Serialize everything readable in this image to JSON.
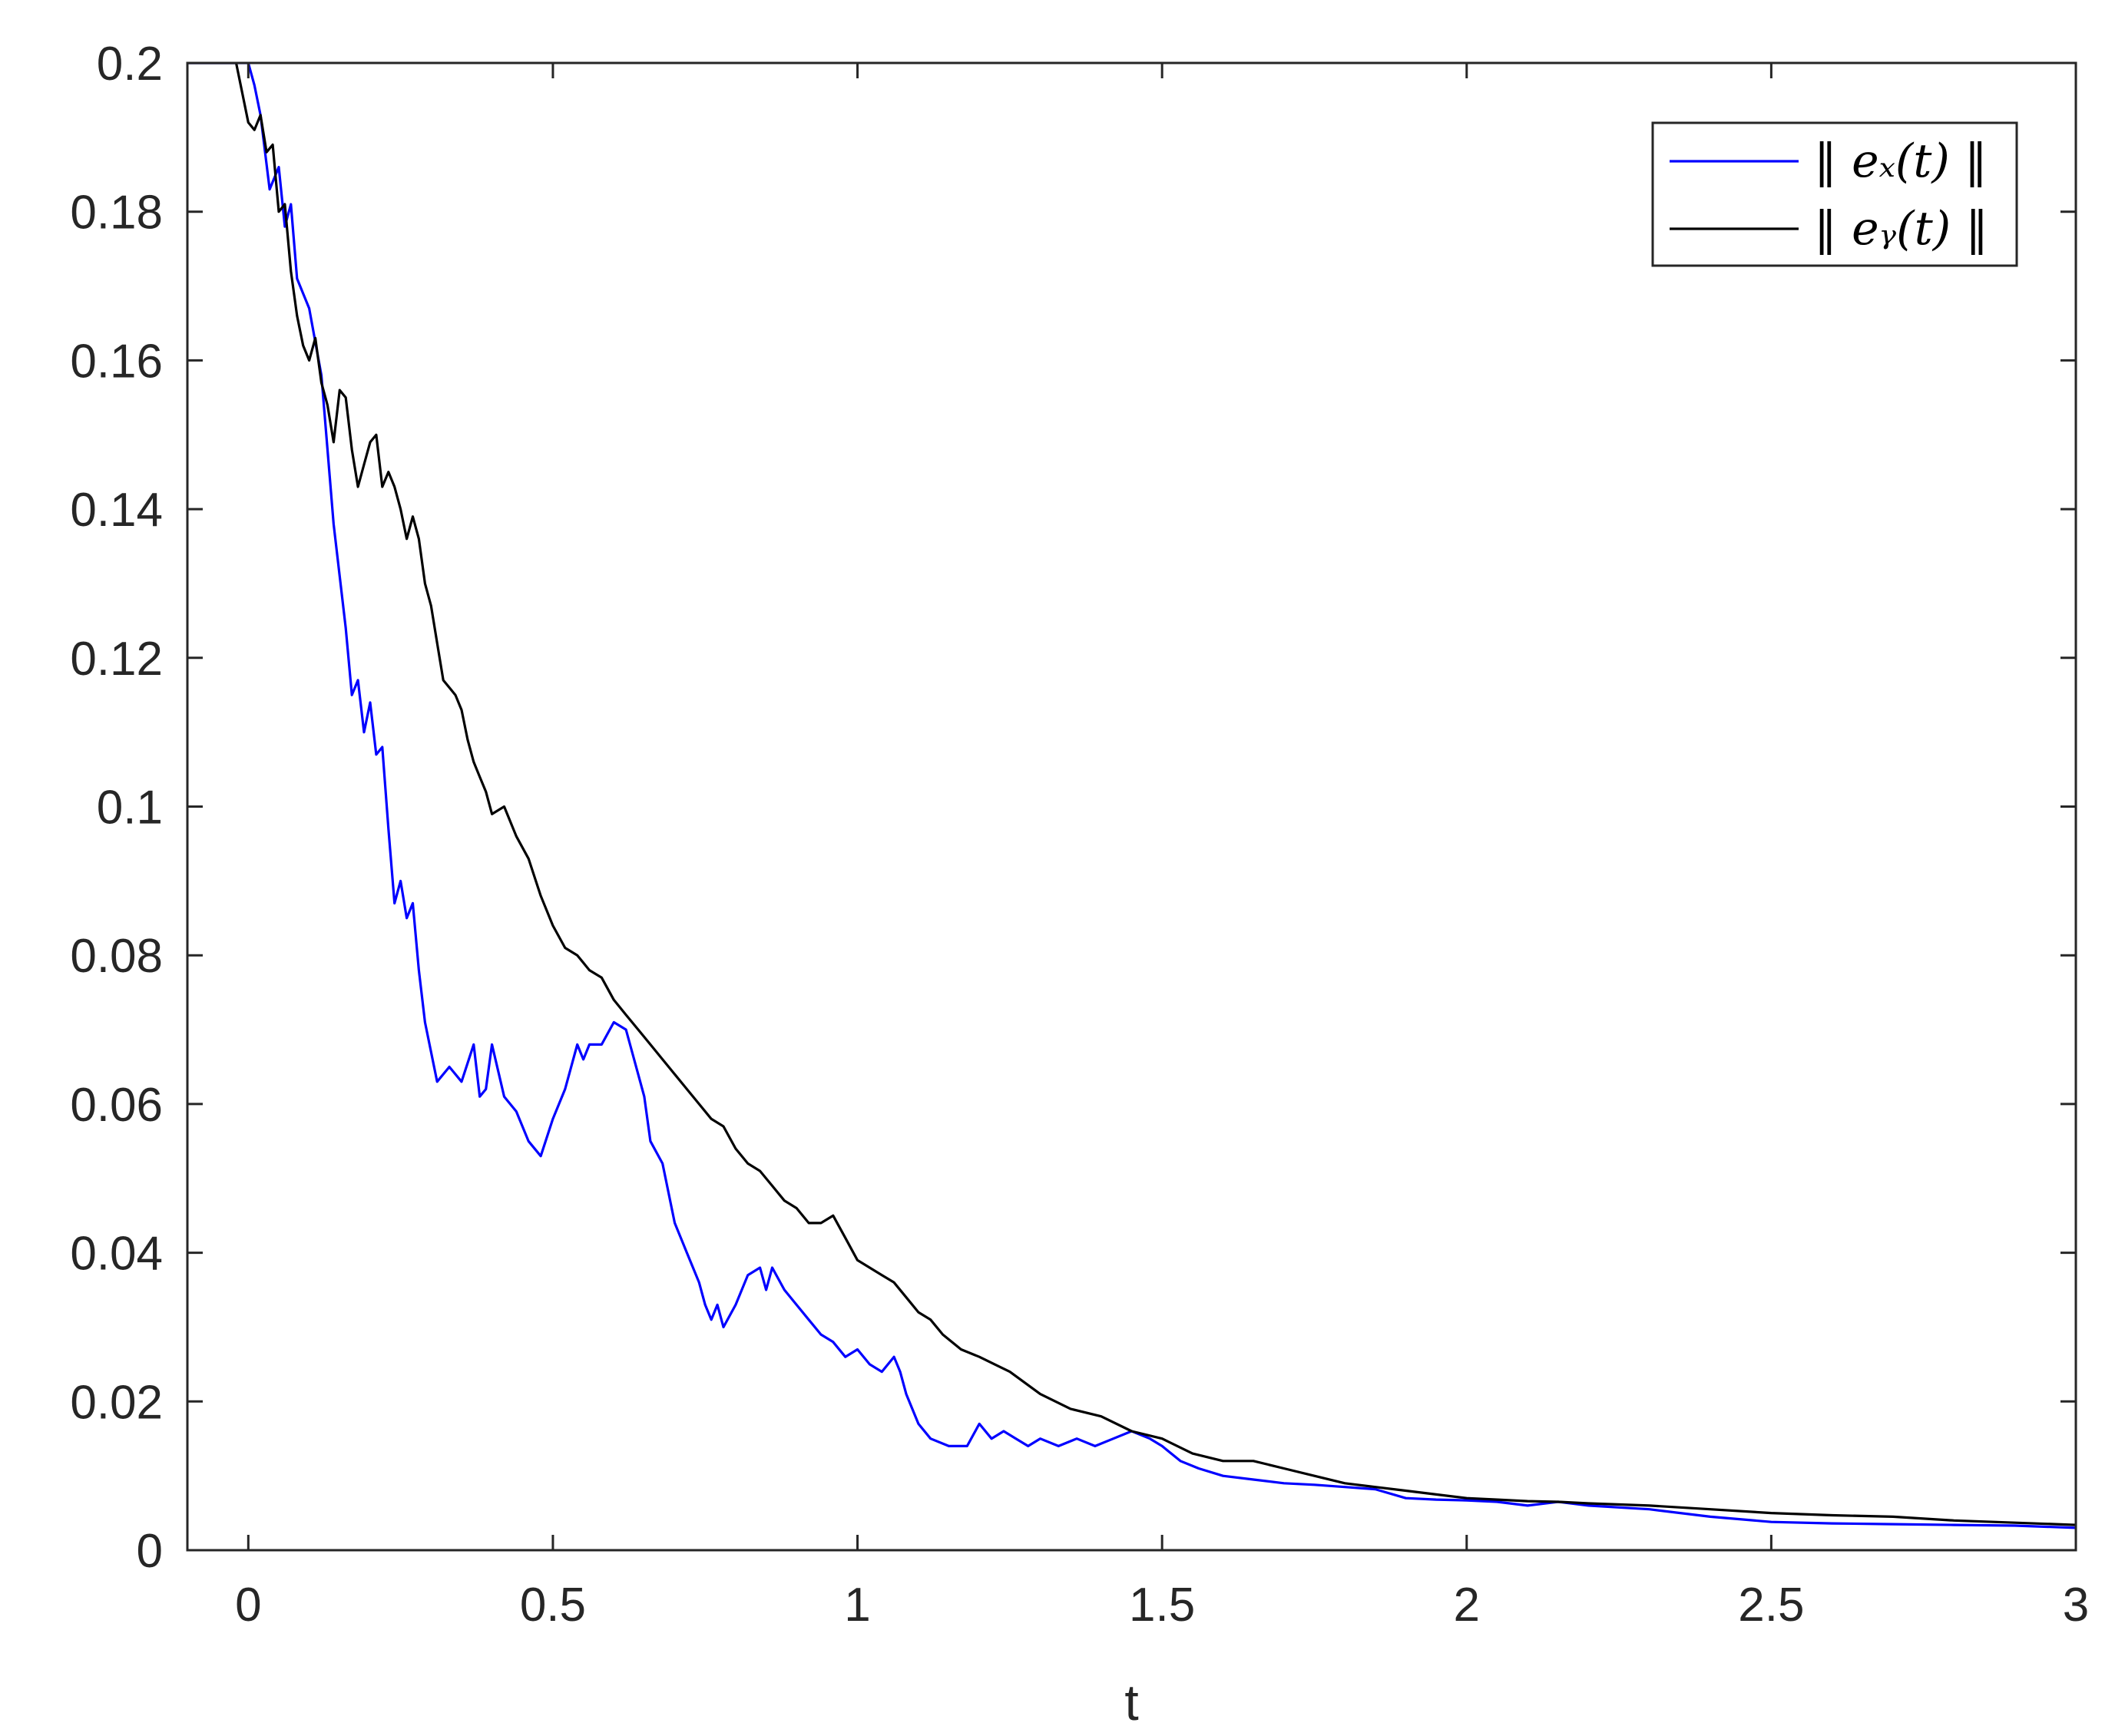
{
  "chart_data": {
    "type": "line",
    "title": "",
    "xlabel": "t",
    "ylabel": "",
    "xlim": [
      -0.1,
      3
    ],
    "ylim": [
      0,
      0.2
    ],
    "xticks": [
      0,
      0.5,
      1,
      1.5,
      2,
      2.5,
      3
    ],
    "xtick_labels": [
      "0",
      "0.5",
      "1",
      "1.5",
      "2",
      "2.5",
      "3"
    ],
    "yticks": [
      0,
      0.02,
      0.04,
      0.06,
      0.08,
      0.1,
      0.12,
      0.14,
      0.16,
      0.18,
      0.2
    ],
    "ytick_labels": [
      "0",
      "0.02",
      "0.04",
      "0.06",
      "0.08",
      "0.1",
      "0.12",
      "0.14",
      "0.16",
      "0.18",
      "0.2"
    ],
    "grid": false,
    "box": true,
    "legend": {
      "placement": "top-right"
    },
    "series": [
      {
        "name": "‖ e_x(t) ‖",
        "legend_label": "‖ eₓ(t) ‖",
        "color": "#0000ff",
        "x": [
          -0.1,
          -0.02,
          0.0,
          0.01,
          0.02,
          0.035,
          0.05,
          0.06,
          0.07,
          0.08,
          0.1,
          0.12,
          0.14,
          0.16,
          0.17,
          0.18,
          0.19,
          0.2,
          0.21,
          0.22,
          0.23,
          0.24,
          0.25,
          0.26,
          0.27,
          0.28,
          0.29,
          0.31,
          0.33,
          0.35,
          0.37,
          0.38,
          0.39,
          0.4,
          0.42,
          0.44,
          0.46,
          0.48,
          0.5,
          0.52,
          0.54,
          0.55,
          0.56,
          0.58,
          0.6,
          0.62,
          0.64,
          0.65,
          0.66,
          0.68,
          0.7,
          0.72,
          0.74,
          0.75,
          0.76,
          0.77,
          0.78,
          0.8,
          0.82,
          0.84,
          0.85,
          0.86,
          0.88,
          0.9,
          0.92,
          0.94,
          0.96,
          0.98,
          1.0,
          1.02,
          1.04,
          1.06,
          1.07,
          1.08,
          1.1,
          1.12,
          1.15,
          1.18,
          1.2,
          1.22,
          1.24,
          1.26,
          1.28,
          1.3,
          1.33,
          1.36,
          1.39,
          1.42,
          1.45,
          1.48,
          1.5,
          1.53,
          1.56,
          1.6,
          1.65,
          1.7,
          1.75,
          1.8,
          1.85,
          1.9,
          1.95,
          2.0,
          2.05,
          2.1,
          2.15,
          2.2,
          2.3,
          2.4,
          2.5,
          2.6,
          2.7,
          2.8,
          2.9,
          3.0
        ],
        "values": [
          0.2,
          0.2,
          0.2,
          0.197,
          0.193,
          0.183,
          0.186,
          0.178,
          0.181,
          0.171,
          0.167,
          0.158,
          0.138,
          0.124,
          0.115,
          0.117,
          0.11,
          0.114,
          0.107,
          0.108,
          0.097,
          0.087,
          0.09,
          0.085,
          0.087,
          0.078,
          0.071,
          0.063,
          0.065,
          0.063,
          0.068,
          0.061,
          0.062,
          0.068,
          0.061,
          0.059,
          0.055,
          0.053,
          0.058,
          0.062,
          0.068,
          0.066,
          0.068,
          0.068,
          0.071,
          0.07,
          0.064,
          0.061,
          0.055,
          0.052,
          0.044,
          0.04,
          0.036,
          0.033,
          0.031,
          0.033,
          0.03,
          0.033,
          0.037,
          0.038,
          0.035,
          0.038,
          0.035,
          0.033,
          0.031,
          0.029,
          0.028,
          0.026,
          0.027,
          0.025,
          0.024,
          0.026,
          0.024,
          0.021,
          0.017,
          0.015,
          0.014,
          0.014,
          0.017,
          0.015,
          0.016,
          0.015,
          0.014,
          0.015,
          0.014,
          0.015,
          0.014,
          0.015,
          0.016,
          0.015,
          0.014,
          0.012,
          0.011,
          0.01,
          0.0095,
          0.009,
          0.0088,
          0.0085,
          0.0082,
          0.007,
          0.0068,
          0.0067,
          0.0065,
          0.006,
          0.0065,
          0.006,
          0.0055,
          0.0045,
          0.0038,
          0.0036,
          0.0035,
          0.0034,
          0.0033,
          0.003
        ]
      },
      {
        "name": "‖ e_y(t) ‖",
        "legend_label": "‖ eᵧ(t) ‖",
        "color": "#000000",
        "x": [
          -0.1,
          -0.02,
          0.0,
          0.01,
          0.02,
          0.03,
          0.04,
          0.05,
          0.06,
          0.07,
          0.08,
          0.09,
          0.1,
          0.11,
          0.12,
          0.13,
          0.14,
          0.15,
          0.16,
          0.17,
          0.18,
          0.19,
          0.2,
          0.21,
          0.22,
          0.23,
          0.24,
          0.25,
          0.26,
          0.27,
          0.28,
          0.29,
          0.3,
          0.31,
          0.32,
          0.33,
          0.34,
          0.35,
          0.36,
          0.37,
          0.38,
          0.39,
          0.4,
          0.42,
          0.44,
          0.46,
          0.48,
          0.5,
          0.52,
          0.54,
          0.56,
          0.58,
          0.6,
          0.62,
          0.64,
          0.66,
          0.68,
          0.7,
          0.72,
          0.74,
          0.76,
          0.78,
          0.8,
          0.82,
          0.84,
          0.86,
          0.88,
          0.9,
          0.92,
          0.94,
          0.96,
          0.98,
          1.0,
          1.02,
          1.04,
          1.06,
          1.08,
          1.1,
          1.12,
          1.14,
          1.17,
          1.2,
          1.25,
          1.3,
          1.35,
          1.4,
          1.45,
          1.5,
          1.55,
          1.6,
          1.65,
          1.7,
          1.75,
          1.8,
          1.85,
          1.9,
          1.95,
          2.0,
          2.05,
          2.1,
          2.15,
          2.2,
          2.3,
          2.4,
          2.5,
          2.6,
          2.7,
          2.8,
          2.9,
          3.0
        ],
        "values": [
          0.2,
          0.2,
          0.192,
          0.191,
          0.193,
          0.188,
          0.189,
          0.18,
          0.181,
          0.172,
          0.166,
          0.162,
          0.16,
          0.163,
          0.157,
          0.154,
          0.149,
          0.156,
          0.155,
          0.148,
          0.143,
          0.146,
          0.149,
          0.15,
          0.143,
          0.145,
          0.143,
          0.14,
          0.136,
          0.139,
          0.136,
          0.13,
          0.127,
          0.122,
          0.117,
          0.116,
          0.115,
          0.113,
          0.109,
          0.106,
          0.104,
          0.102,
          0.099,
          0.1,
          0.096,
          0.093,
          0.088,
          0.084,
          0.081,
          0.08,
          0.078,
          0.077,
          0.074,
          0.072,
          0.07,
          0.068,
          0.066,
          0.064,
          0.062,
          0.06,
          0.058,
          0.057,
          0.054,
          0.052,
          0.051,
          0.049,
          0.047,
          0.046,
          0.044,
          0.044,
          0.045,
          0.042,
          0.039,
          0.038,
          0.037,
          0.036,
          0.034,
          0.032,
          0.031,
          0.029,
          0.027,
          0.026,
          0.024,
          0.021,
          0.019,
          0.018,
          0.016,
          0.015,
          0.013,
          0.012,
          0.012,
          0.011,
          0.01,
          0.009,
          0.0085,
          0.008,
          0.0075,
          0.007,
          0.0068,
          0.0066,
          0.0065,
          0.0063,
          0.006,
          0.0055,
          0.005,
          0.0047,
          0.0045,
          0.004,
          0.0037,
          0.0034
        ]
      }
    ]
  }
}
